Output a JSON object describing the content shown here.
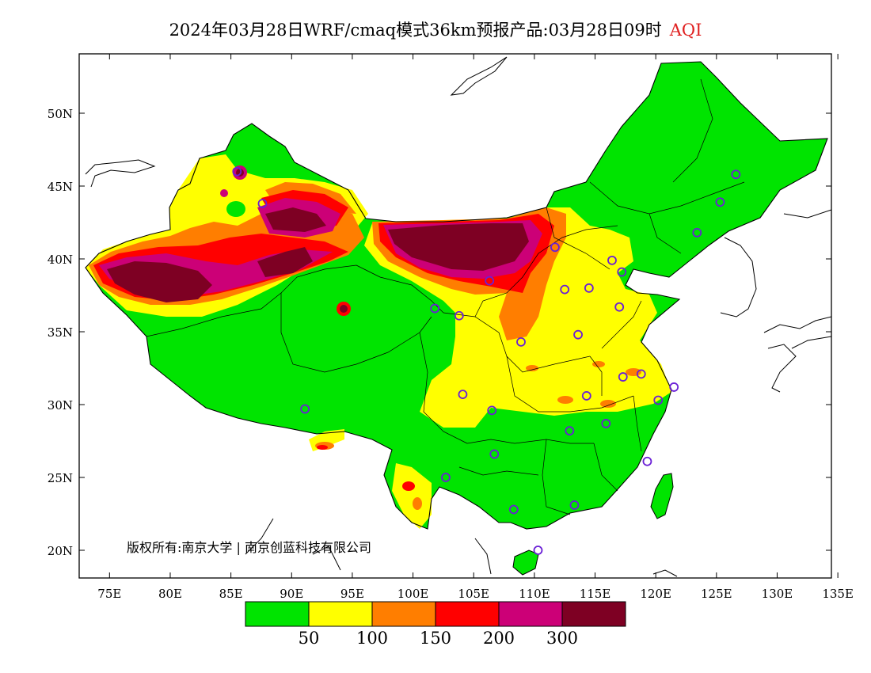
{
  "title": {
    "main": "2024年03月28日WRF/cmaq模式36km预报产品:03月28日09时",
    "variable": "AQI"
  },
  "axes": {
    "lat_labels": [
      "50N",
      "45N",
      "40N",
      "35N",
      "30N",
      "25N",
      "20N"
    ],
    "lon_labels": [
      "75E",
      "80E",
      "85E",
      "90E",
      "95E",
      "100E",
      "105E",
      "110E",
      "115E",
      "120E",
      "125E",
      "130E",
      "135E"
    ]
  },
  "copyright": "版权所有:南京大学 | 南京创蓝科技有限公司",
  "legend": {
    "colors": [
      "#00e400",
      "#ffff00",
      "#ff7e00",
      "#ff0000",
      "#cc0077",
      "#7e0023"
    ],
    "labels": [
      "50",
      "100",
      "150",
      "200",
      "300"
    ]
  },
  "stations": [
    {
      "lon": 126.6,
      "lat": 45.8
    },
    {
      "lon": 125.3,
      "lat": 43.9
    },
    {
      "lon": 123.4,
      "lat": 41.8
    },
    {
      "lon": 116.4,
      "lat": 39.9
    },
    {
      "lon": 117.2,
      "lat": 39.1
    },
    {
      "lon": 114.5,
      "lat": 38.0
    },
    {
      "lon": 112.5,
      "lat": 37.9
    },
    {
      "lon": 111.7,
      "lat": 40.8
    },
    {
      "lon": 117.0,
      "lat": 36.7
    },
    {
      "lon": 113.6,
      "lat": 34.8
    },
    {
      "lon": 108.9,
      "lat": 34.3
    },
    {
      "lon": 103.8,
      "lat": 36.1
    },
    {
      "lon": 101.8,
      "lat": 36.6
    },
    {
      "lon": 106.3,
      "lat": 38.5
    },
    {
      "lon": 87.6,
      "lat": 43.8
    },
    {
      "lon": 91.1,
      "lat": 29.7
    },
    {
      "lon": 104.1,
      "lat": 30.7
    },
    {
      "lon": 106.5,
      "lat": 29.6
    },
    {
      "lon": 114.3,
      "lat": 30.6
    },
    {
      "lon": 112.9,
      "lat": 28.2
    },
    {
      "lon": 115.9,
      "lat": 28.7
    },
    {
      "lon": 117.3,
      "lat": 31.9
    },
    {
      "lon": 118.8,
      "lat": 32.1
    },
    {
      "lon": 120.2,
      "lat": 30.3
    },
    {
      "lon": 121.5,
      "lat": 31.2
    },
    {
      "lon": 119.3,
      "lat": 26.1
    },
    {
      "lon": 113.3,
      "lat": 23.1
    },
    {
      "lon": 108.3,
      "lat": 22.8
    },
    {
      "lon": 106.7,
      "lat": 26.6
    },
    {
      "lon": 102.7,
      "lat": 25.0
    },
    {
      "lon": 110.3,
      "lat": 20.0
    },
    {
      "lon": 85.5,
      "lat": 46.0
    }
  ]
}
